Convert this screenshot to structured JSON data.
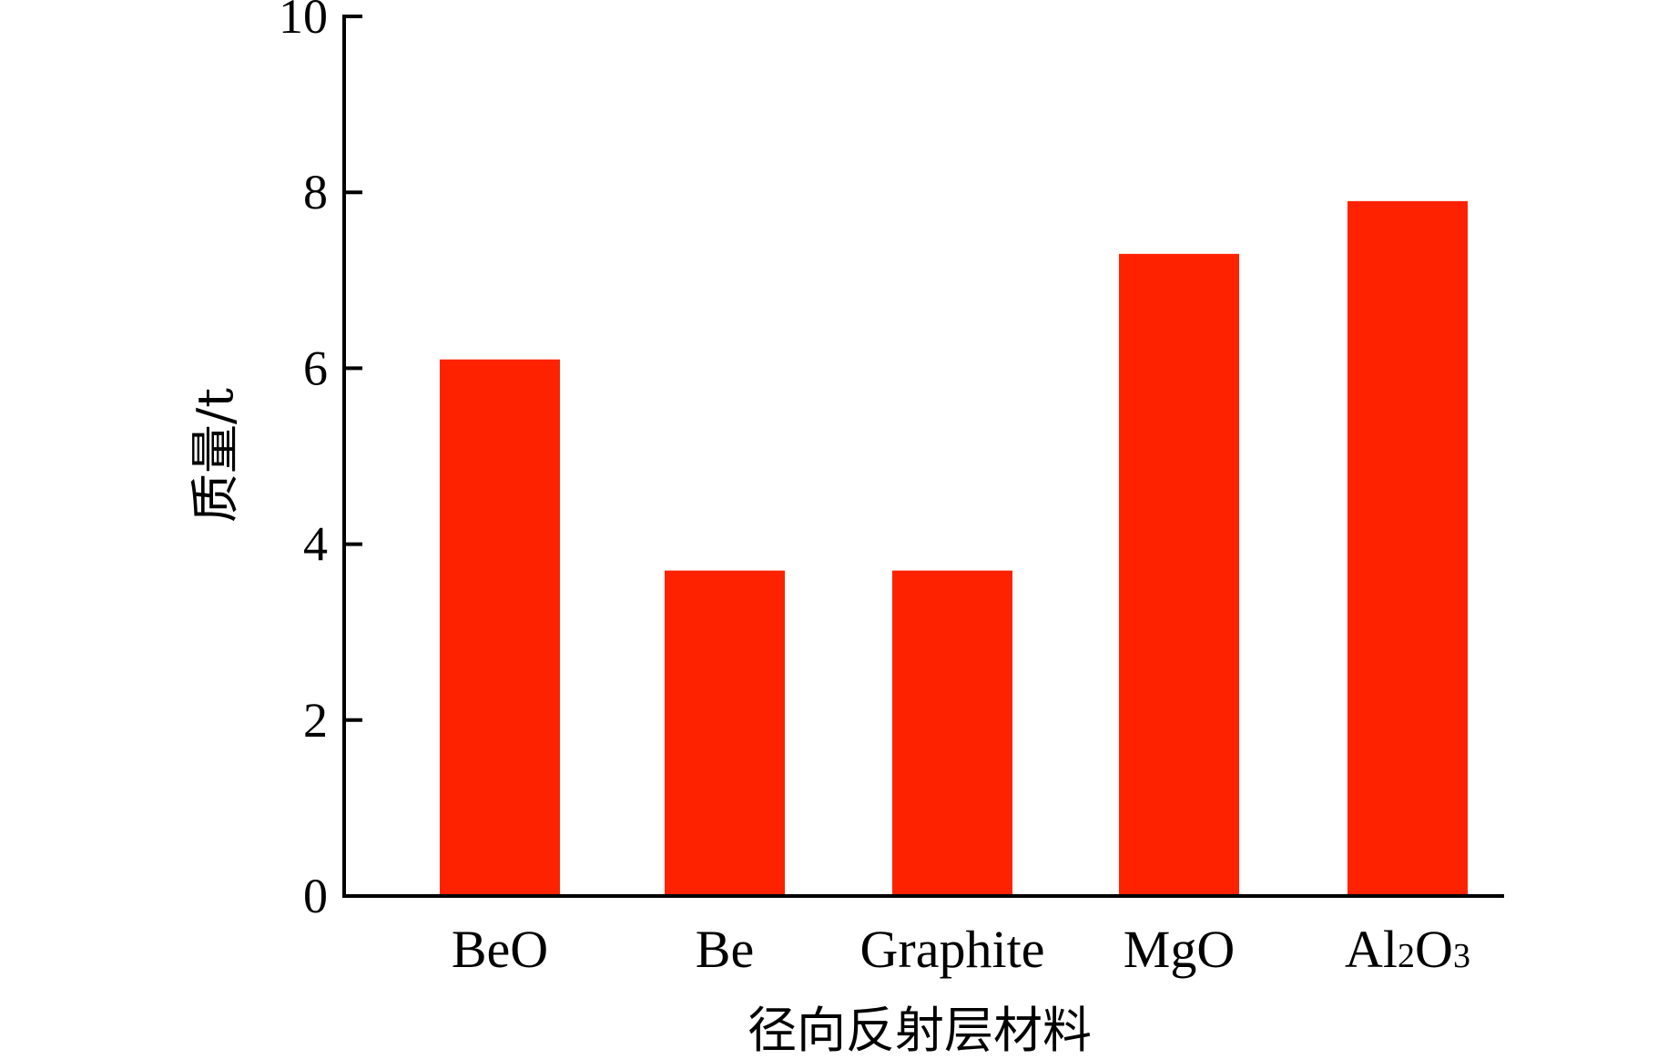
{
  "chart_data": {
    "type": "bar",
    "categories": [
      "BeO",
      "Be",
      "Graphite",
      "MgO",
      "Al2O3"
    ],
    "category_labels": [
      {
        "text": "BeO"
      },
      {
        "text": "Be"
      },
      {
        "text": "Graphite"
      },
      {
        "text": "MgO"
      },
      {
        "parts": [
          {
            "t": "Al",
            "sub": false
          },
          {
            "t": "2",
            "sub": true
          },
          {
            "t": "O",
            "sub": false
          },
          {
            "t": "3",
            "sub": true
          }
        ]
      }
    ],
    "values": [
      6.1,
      3.7,
      3.7,
      7.3,
      7.9
    ],
    "xlabel": "径向反射层材料",
    "ylabel": "质量/t",
    "ylim": [
      0,
      10
    ],
    "yticks": [
      "0",
      "2",
      "4",
      "6",
      "8",
      "10"
    ],
    "grid": false,
    "bar_color": "#ff2200"
  }
}
